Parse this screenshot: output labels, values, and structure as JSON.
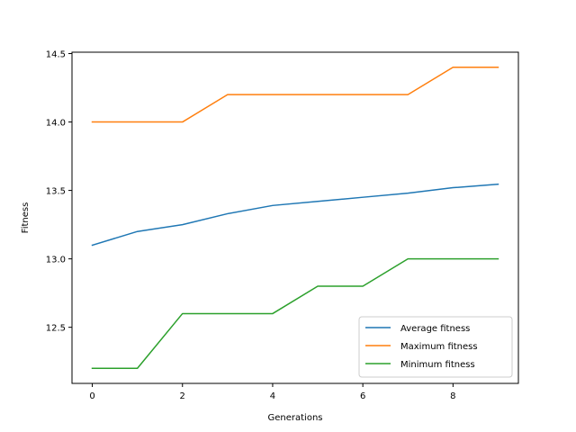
{
  "chart_data": {
    "type": "line",
    "title": "",
    "xlabel": "Generations",
    "ylabel": "Fitness",
    "x": [
      0,
      1,
      2,
      3,
      4,
      5,
      6,
      7,
      8,
      9
    ],
    "xlim": [
      -0.45,
      9.45
    ],
    "ylim": [
      12.09,
      14.51
    ],
    "xticks": [
      0,
      2,
      4,
      6,
      8
    ],
    "xtick_labels": [
      "0",
      "2",
      "4",
      "6",
      "8"
    ],
    "yticks": [
      12.5,
      13.0,
      13.5,
      14.0,
      14.5
    ],
    "ytick_labels": [
      "12.5",
      "13.0",
      "13.5",
      "14.0",
      "14.5"
    ],
    "grid": false,
    "legend_position": "bottom-right",
    "series": [
      {
        "name": "Average fitness",
        "color": "#1f77b4",
        "values": [
          13.1,
          13.2,
          13.25,
          13.33,
          13.39,
          13.42,
          13.45,
          13.48,
          13.52,
          13.545
        ]
      },
      {
        "name": "Maximum fitness",
        "color": "#ff7f0e",
        "values": [
          14.0,
          14.0,
          14.0,
          14.2,
          14.2,
          14.2,
          14.2,
          14.2,
          14.4,
          14.4
        ]
      },
      {
        "name": "Minimum fitness",
        "color": "#2ca02c",
        "values": [
          12.2,
          12.2,
          12.6,
          12.6,
          12.6,
          12.8,
          12.8,
          13.0,
          13.0,
          13.0
        ]
      }
    ]
  }
}
